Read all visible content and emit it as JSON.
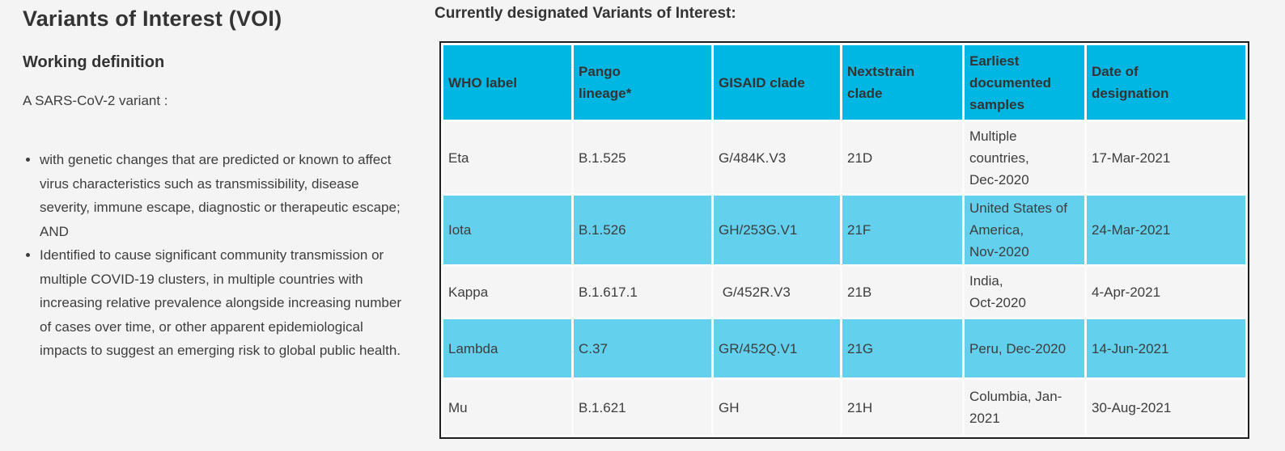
{
  "left_panel": {
    "title": "Variants of Interest (VOI)",
    "subtitle": "Working definition",
    "intro": "A SARS-CoV-2 variant :",
    "bullets": [
      "with genetic changes that are predicted or known to affect virus characteristics such as transmissibility, disease severity, immune escape, diagnostic or therapeutic escape; AND",
      "Identified to cause significant community transmission or multiple COVID-19 clusters, in multiple countries with increasing relative prevalence alongside increasing number of cases over time, or other apparent epidemiological impacts to suggest an emerging risk to global public health."
    ]
  },
  "right_panel": {
    "heading": "Currently designated Variants of Interest:",
    "table": {
      "columns": [
        "WHO label",
        "Pango\nlineage*",
        "GISAID clade",
        "Nextstrain\nclade",
        "Earliest\ndocumented\nsamples",
        "Date of\ndesignation"
      ],
      "rows": [
        [
          "Eta",
          "B.1.525",
          "G/484K.V3",
          "21D",
          "Multiple\ncountries,\nDec-2020",
          "17-Mar-2021"
        ],
        [
          "Iota",
          "B.1.526",
          "GH/253G.V1",
          "21F",
          "United States of\nAmerica,\nNov-2020",
          "24-Mar-2021"
        ],
        [
          "Kappa",
          "B.1.617.1",
          " G/452R.V3",
          "21B",
          "India,\nOct-2020",
          "4-Apr-2021"
        ],
        [
          "Lambda",
          "C.37",
          "GR/452Q.V1",
          "21G",
          "Peru, Dec-2020",
          "14-Jun-2021"
        ],
        [
          "Mu",
          "B.1.621",
          "GH",
          "21H",
          "Columbia, Jan-2021",
          "30-Aug-2021"
        ]
      ]
    }
  },
  "colors": {
    "page_background": "#f4f4f4",
    "table_header_bg": "#00b6e3",
    "table_alt_row_bg": "#63d1ee",
    "table_row_bg": "#f5f5f5",
    "table_border": "#1f1f1f",
    "text": "#3d3d3d"
  }
}
